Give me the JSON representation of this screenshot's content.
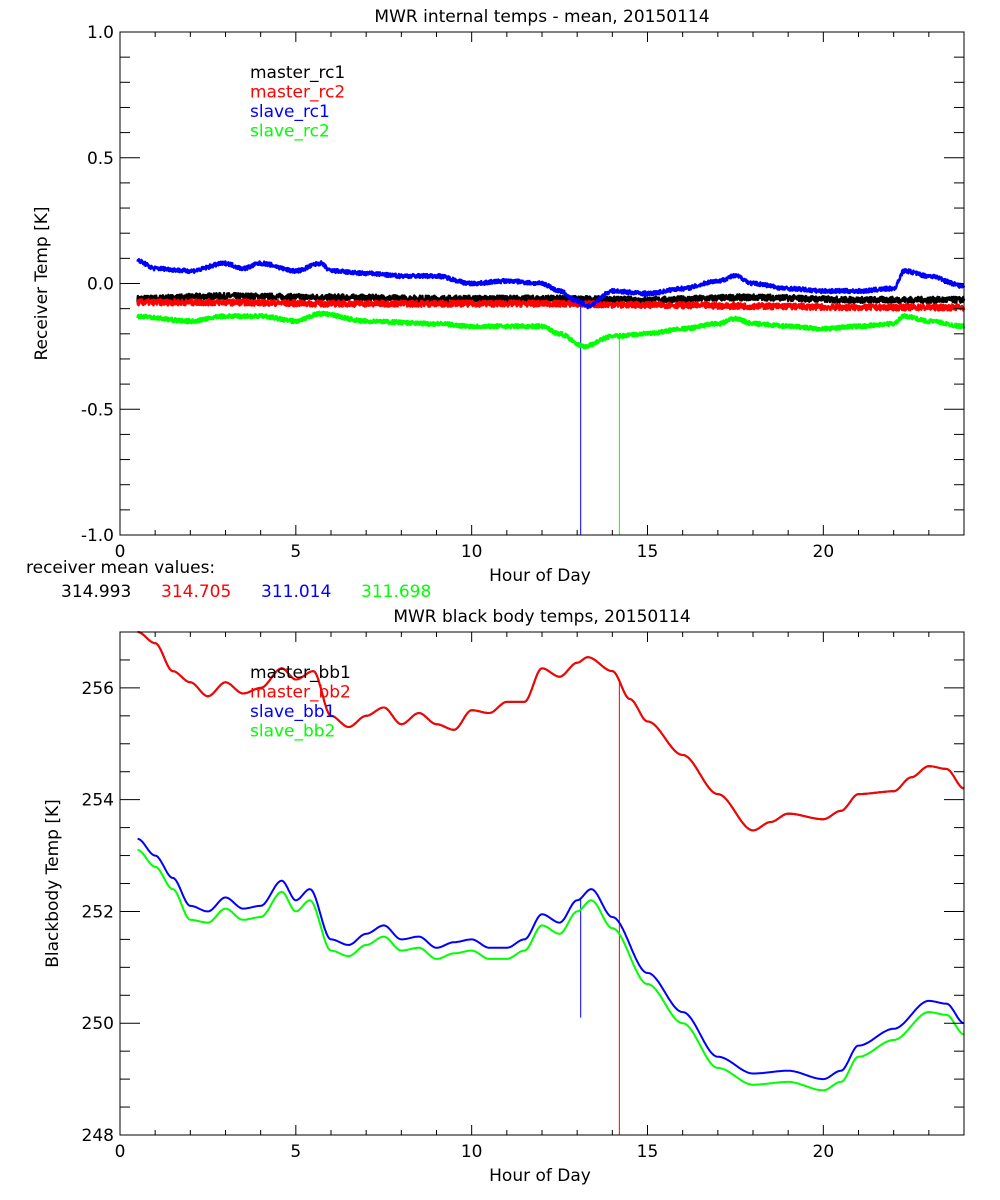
{
  "colors": {
    "master_rc1": "#000000",
    "master_rc2": "#ff0000",
    "slave_rc1": "#0000ff",
    "slave_rc2": "#00ff00"
  },
  "receiver_mean": {
    "label": "receiver mean values:",
    "values": [
      "314.993",
      "314.705",
      "311.014",
      "311.698"
    ]
  },
  "chart_data": [
    {
      "type": "line",
      "title": "MWR internal temps - mean, 20150114",
      "xlabel": "Hour of Day",
      "ylabel": "Receiver Temp [K]",
      "xlim": [
        0,
        24
      ],
      "ylim": [
        -1.0,
        1.0
      ],
      "xticks": [
        "0",
        "5",
        "10",
        "15",
        "20"
      ],
      "yticks": [
        "-1.0",
        "-0.5",
        "0.0",
        "0.5",
        "1.0"
      ],
      "legend": "top-left",
      "series": [
        {
          "name": "master_rc1",
          "color": "#000000",
          "noise": 0.012,
          "x": [
            0.5,
            3,
            6,
            9,
            12,
            15,
            18,
            21,
            24
          ],
          "y": [
            -0.06,
            -0.05,
            -0.055,
            -0.06,
            -0.06,
            -0.065,
            -0.055,
            -0.065,
            -0.065
          ]
        },
        {
          "name": "master_rc2",
          "color": "#ff0000",
          "noise": 0.012,
          "x": [
            0.5,
            3,
            6,
            9,
            12,
            15,
            18,
            21,
            24
          ],
          "y": [
            -0.075,
            -0.075,
            -0.08,
            -0.08,
            -0.08,
            -0.085,
            -0.09,
            -0.095,
            -0.095
          ]
        },
        {
          "name": "slave_rc1",
          "color": "#0000ff",
          "noise": 0.008,
          "x": [
            0.5,
            1,
            2,
            3,
            3.5,
            4,
            5,
            5.7,
            6,
            7,
            8,
            9,
            10,
            11,
            12,
            12.5,
            13,
            13.3,
            14,
            15,
            16,
            17,
            17.5,
            18,
            19,
            20,
            21,
            22,
            22.3,
            23,
            24
          ],
          "y": [
            0.09,
            0.06,
            0.05,
            0.08,
            0.06,
            0.08,
            0.05,
            0.08,
            0.05,
            0.04,
            0.03,
            0.03,
            0.0,
            0.01,
            0.0,
            -0.03,
            -0.07,
            -0.09,
            -0.03,
            -0.04,
            -0.02,
            0.01,
            0.03,
            0.0,
            -0.02,
            -0.03,
            -0.03,
            -0.02,
            0.05,
            0.03,
            -0.01
          ],
          "spike": {
            "x": 13.1,
            "y": -1.0
          }
        },
        {
          "name": "slave_rc2",
          "color": "#00ff00",
          "noise": 0.008,
          "x": [
            0.5,
            2,
            3,
            4,
            5,
            5.7,
            7,
            9,
            10,
            11,
            12,
            12.5,
            13.2,
            14,
            15,
            16,
            17,
            17.5,
            18,
            19,
            20,
            21,
            22,
            22.3,
            23,
            24
          ],
          "y": [
            -0.13,
            -0.15,
            -0.13,
            -0.13,
            -0.15,
            -0.12,
            -0.15,
            -0.16,
            -0.17,
            -0.17,
            -0.17,
            -0.2,
            -0.25,
            -0.21,
            -0.2,
            -0.18,
            -0.16,
            -0.14,
            -0.16,
            -0.17,
            -0.18,
            -0.17,
            -0.16,
            -0.13,
            -0.15,
            -0.17
          ],
          "spike": {
            "x": 14.2,
            "y": -1.0
          }
        }
      ]
    },
    {
      "type": "line",
      "title": "MWR black body temps, 20150114",
      "xlabel": "Hour of Day",
      "ylabel": "Blackbody Temp [K]",
      "xlim": [
        0,
        24
      ],
      "ylim": [
        248,
        257
      ],
      "xticks": [
        "0",
        "5",
        "10",
        "15",
        "20"
      ],
      "yticks": [
        "248",
        "250",
        "252",
        "254",
        "256"
      ],
      "legend": "top-left",
      "series": [
        {
          "name": "master_bb1",
          "color": "#000000",
          "x": [
            0.5,
            1,
            1.5,
            2,
            2.5,
            3,
            3.5,
            4,
            4.6,
            5,
            5.5,
            6,
            6.5,
            7,
            7.5,
            8,
            8.5,
            9,
            9.5,
            10,
            10.5,
            11,
            11.5,
            12,
            12.5,
            13,
            13.3,
            14,
            14.5,
            15,
            16,
            17,
            18,
            18.5,
            19,
            20,
            20.5,
            21,
            22,
            22.5,
            23,
            23.5,
            24
          ],
          "y": [
            257.0,
            256.8,
            256.3,
            256.1,
            255.85,
            256.1,
            255.9,
            256.0,
            256.35,
            256.15,
            256.3,
            255.5,
            255.3,
            255.5,
            255.65,
            255.35,
            255.55,
            255.35,
            255.25,
            255.6,
            255.55,
            255.75,
            255.75,
            256.35,
            256.2,
            256.45,
            256.55,
            256.3,
            255.8,
            255.4,
            254.8,
            254.1,
            253.45,
            253.6,
            253.75,
            253.65,
            253.8,
            254.1,
            254.15,
            254.4,
            254.6,
            254.55,
            254.2
          ]
        },
        {
          "name": "master_bb2",
          "color": "#ff0000",
          "x": [
            0.5,
            1,
            1.5,
            2,
            2.5,
            3,
            3.5,
            4,
            4.6,
            5,
            5.5,
            6,
            6.5,
            7,
            7.5,
            8,
            8.5,
            9,
            9.5,
            10,
            10.5,
            11,
            11.5,
            12,
            12.5,
            13,
            13.3,
            14,
            14.5,
            15,
            16,
            17,
            18,
            18.5,
            19,
            20,
            20.5,
            21,
            22,
            22.5,
            23,
            23.5,
            24
          ],
          "y": [
            257.0,
            256.8,
            256.3,
            256.1,
            255.85,
            256.1,
            255.9,
            256.0,
            256.35,
            256.15,
            256.3,
            255.5,
            255.3,
            255.5,
            255.65,
            255.35,
            255.55,
            255.35,
            255.25,
            255.6,
            255.55,
            255.75,
            255.75,
            256.35,
            256.2,
            256.45,
            256.55,
            256.3,
            255.8,
            255.4,
            254.8,
            254.1,
            253.45,
            253.6,
            253.75,
            253.65,
            253.8,
            254.1,
            254.15,
            254.4,
            254.6,
            254.55,
            254.2
          ],
          "spike": {
            "x": 14.2,
            "y": 248
          }
        },
        {
          "name": "slave_bb1",
          "color": "#0000ff",
          "x": [
            0.5,
            1,
            1.5,
            2,
            2.5,
            3,
            3.5,
            4,
            4.6,
            5,
            5.4,
            6,
            6.5,
            7,
            7.5,
            8,
            8.5,
            9,
            9.5,
            10,
            10.5,
            11,
            11.5,
            12,
            12.5,
            13,
            13.4,
            14,
            15,
            16,
            17,
            18,
            19,
            20,
            20.5,
            21,
            22,
            23,
            23.5,
            24
          ],
          "y": [
            253.3,
            253.0,
            252.6,
            252.1,
            252.0,
            252.25,
            252.05,
            252.1,
            252.55,
            252.2,
            252.4,
            251.5,
            251.4,
            251.6,
            251.75,
            251.5,
            251.55,
            251.35,
            251.45,
            251.5,
            251.35,
            251.35,
            251.5,
            251.95,
            251.8,
            252.2,
            252.4,
            251.9,
            250.9,
            250.2,
            249.4,
            249.1,
            249.15,
            249.0,
            249.15,
            249.6,
            249.9,
            250.4,
            250.35,
            250.0
          ],
          "spike": {
            "x": 13.1,
            "y": 250.1
          }
        },
        {
          "name": "slave_bb2",
          "color": "#00ff00",
          "x": [
            0.5,
            1,
            1.5,
            2,
            2.5,
            3,
            3.5,
            4,
            4.6,
            5,
            5.4,
            6,
            6.5,
            7,
            7.5,
            8,
            8.5,
            9,
            9.5,
            10,
            10.5,
            11,
            11.5,
            12,
            12.5,
            13,
            13.4,
            14,
            15,
            16,
            17,
            18,
            19,
            20,
            20.5,
            21,
            22,
            23,
            23.5,
            24
          ],
          "y": [
            253.1,
            252.8,
            252.4,
            251.85,
            251.8,
            252.05,
            251.85,
            251.9,
            252.35,
            252.0,
            252.2,
            251.3,
            251.2,
            251.4,
            251.55,
            251.3,
            251.35,
            251.15,
            251.25,
            251.3,
            251.15,
            251.15,
            251.3,
            251.75,
            251.6,
            252.0,
            252.2,
            251.7,
            250.7,
            250.0,
            249.2,
            248.9,
            248.95,
            248.8,
            248.95,
            249.4,
            249.7,
            250.2,
            250.15,
            249.8
          ]
        }
      ]
    }
  ]
}
